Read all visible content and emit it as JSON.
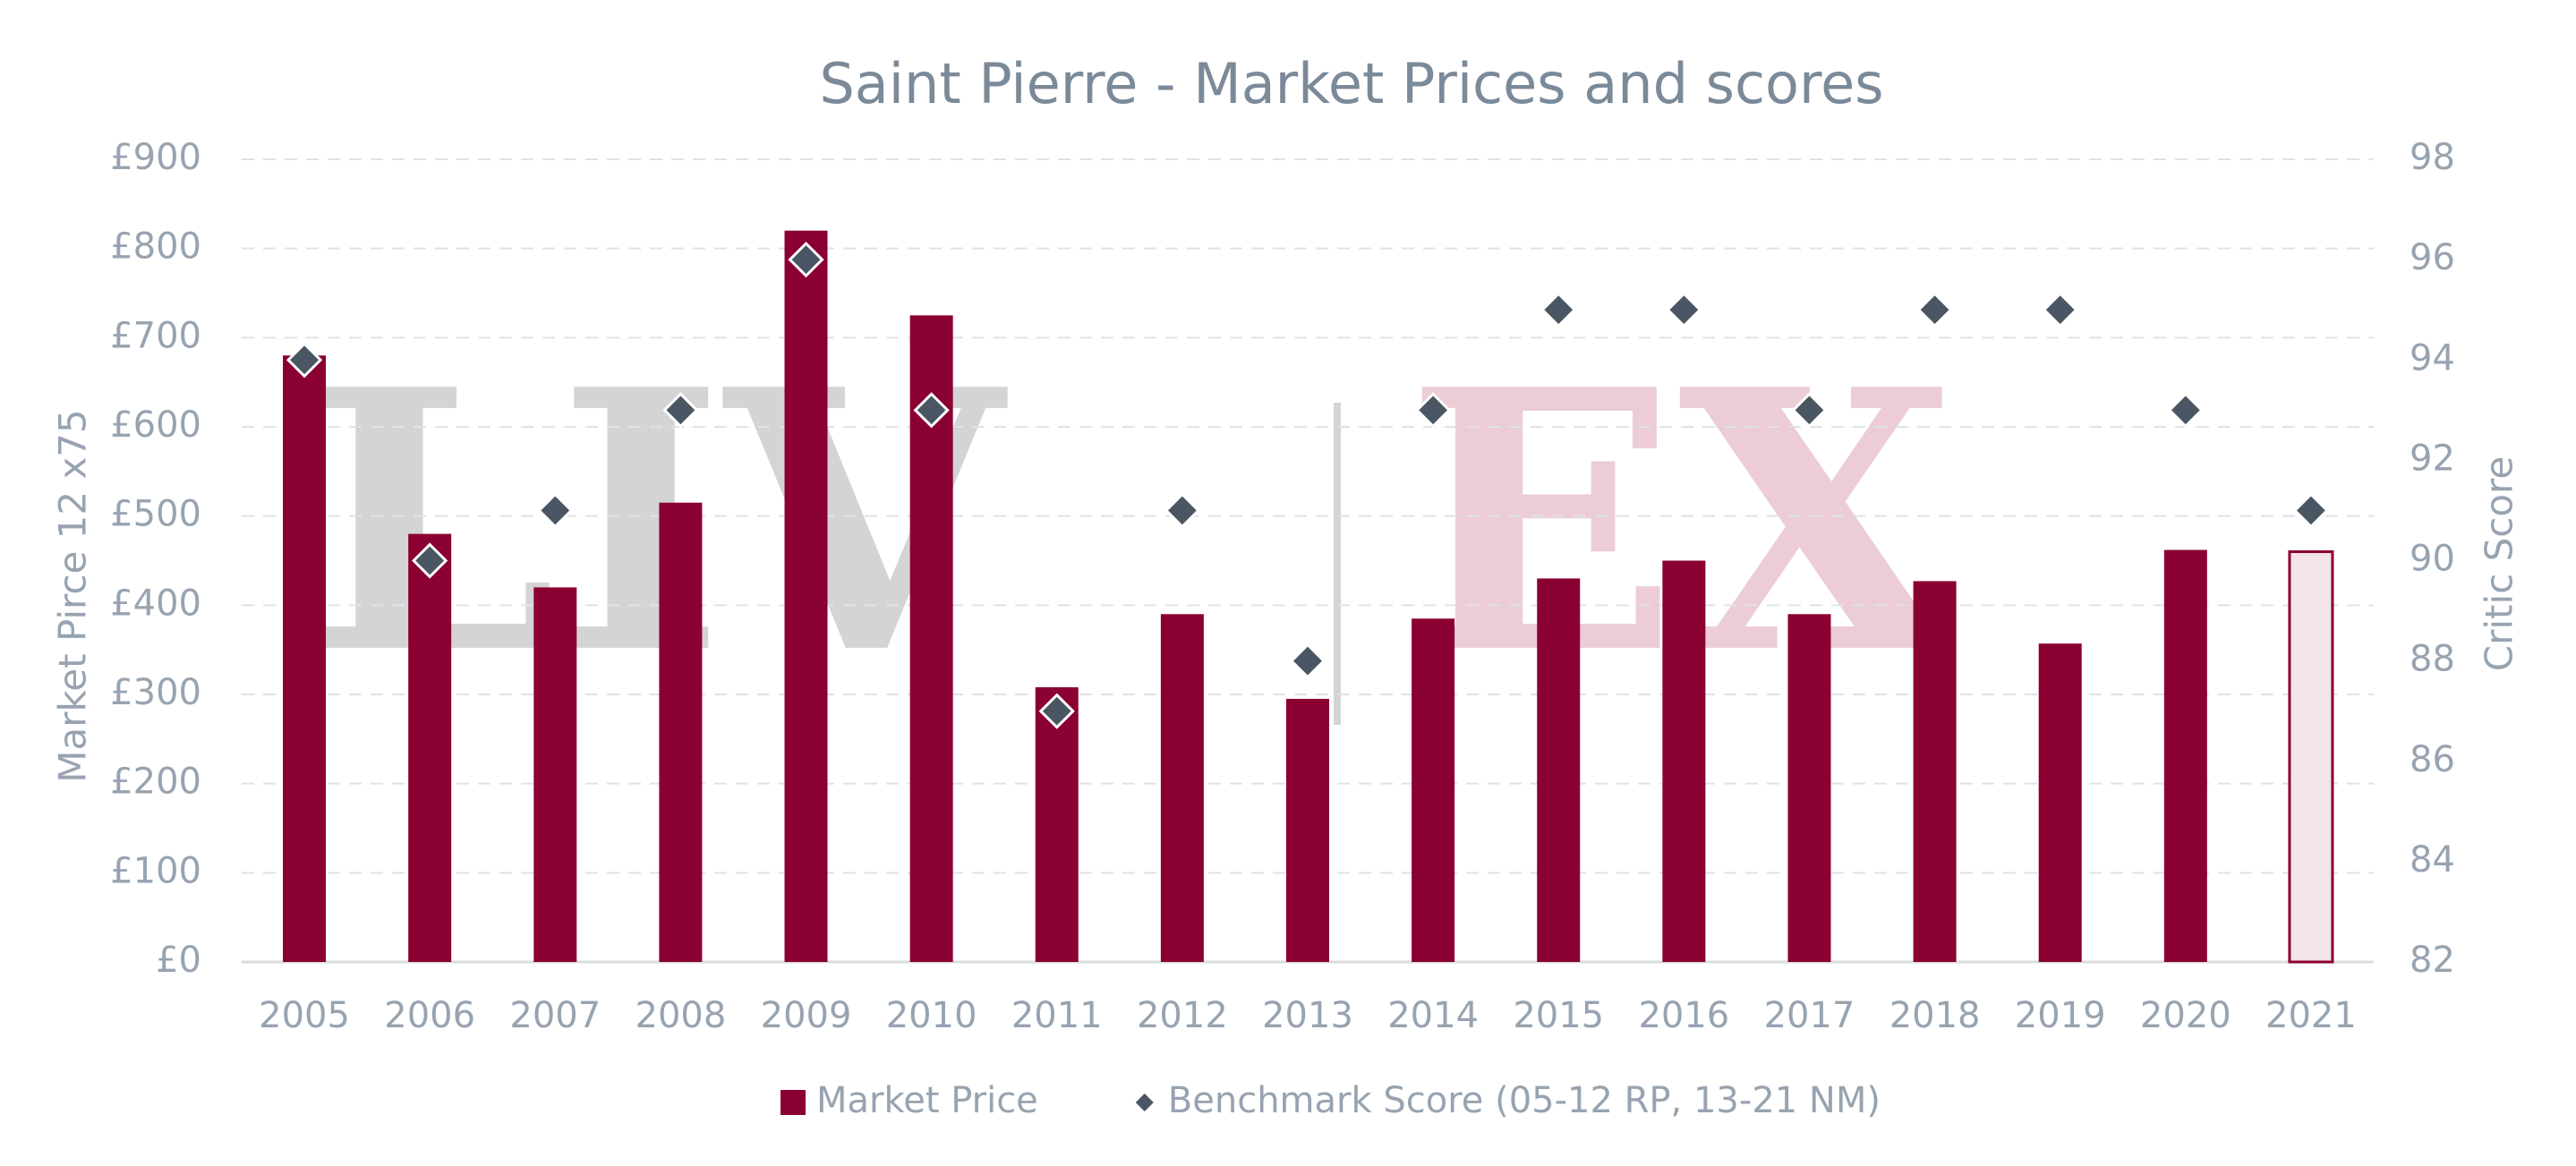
{
  "chart_data": {
    "type": "bar",
    "title": "Saint Pierre - Market Prices and scores",
    "watermark": [
      "LIV",
      "EX"
    ],
    "y_label": "Market Pirce 12 x75",
    "y2_label": "Critic Score",
    "categories": [
      "2005",
      "2006",
      "2007",
      "2008",
      "2009",
      "2010",
      "2011",
      "2012",
      "2013",
      "2014",
      "2015",
      "2016",
      "2017",
      "2018",
      "2019",
      "2020",
      "2021"
    ],
    "series": [
      {
        "name": "Market Price",
        "type": "bar",
        "color": "#8b0033",
        "colors": [
          "#8b0033",
          "#8b0033",
          "#8b0033",
          "#8b0033",
          "#8b0033",
          "#8b0033",
          "#8b0033",
          "#8b0033",
          "#8b0033",
          "#8b0033",
          "#8b0033",
          "#8b0033",
          "#8b0033",
          "#8b0033",
          "#8b0033",
          "#8b0033",
          "#f3e4e9"
        ],
        "values": [
          680,
          480,
          420,
          515,
          820,
          725,
          308,
          390,
          295,
          385,
          430,
          450,
          390,
          427,
          357,
          462,
          460
        ]
      },
      {
        "name": "Benchmark Score (05-12 RP, 13-21 NM)",
        "type": "scatter",
        "color": "#4a5663",
        "axis": "y2",
        "values": [
          94,
          90,
          91,
          93,
          96,
          93,
          87,
          91,
          88,
          93,
          95,
          95,
          93,
          95,
          95,
          93,
          91
        ]
      }
    ],
    "ylim": [
      0,
      900
    ],
    "yticks": [
      {
        "value": 0,
        "label": "£0"
      },
      {
        "value": 100,
        "label": "£100"
      },
      {
        "value": 200,
        "label": "£200"
      },
      {
        "value": 300,
        "label": "£300"
      },
      {
        "value": 400,
        "label": "£400"
      },
      {
        "value": 500,
        "label": "£500"
      },
      {
        "value": 600,
        "label": "£600"
      },
      {
        "value": 700,
        "label": "£700"
      },
      {
        "value": 800,
        "label": "£800"
      },
      {
        "value": 900,
        "label": "£900"
      }
    ],
    "y2lim": [
      82,
      98
    ],
    "y2ticks": [
      82,
      84,
      86,
      88,
      90,
      92,
      94,
      96,
      98
    ],
    "grid": true,
    "legend": "bottom"
  }
}
